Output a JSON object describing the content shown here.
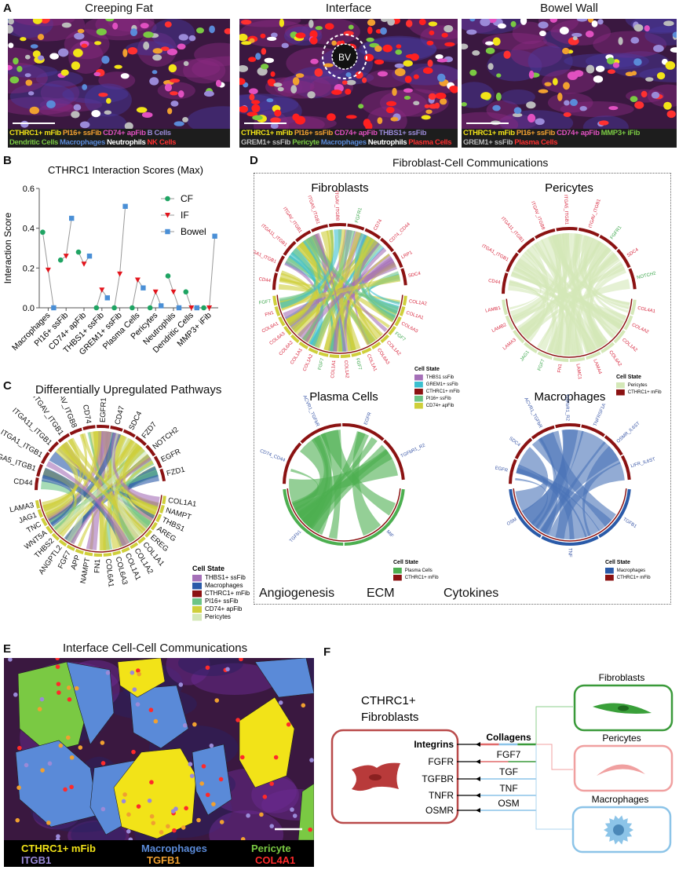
{
  "colors": {
    "angiogenesis": "#3aa64a",
    "ecm": "#d7263d",
    "cytokines": "#3a57a7",
    "cthrc1": "#8b1212",
    "black": "#111111"
  },
  "panelA": {
    "label": "A",
    "panels": [
      {
        "title": "Creeping Fat",
        "legend": [
          [
            {
              "t": "CTHRC1+ mFib",
              "c": "#f2e318"
            },
            {
              "t": "PI16+ ssFib",
              "c": "#f0a030"
            },
            {
              "t": "CD74+ apFib",
              "c": "#e050c0"
            },
            {
              "t": "B Cells",
              "c": "#9a8ad8"
            }
          ],
          [
            {
              "t": "Dendritic Cells",
              "c": "#7ac943"
            },
            {
              "t": "Macrophages",
              "c": "#5a8ad8"
            },
            {
              "t": "Neutrophils",
              "c": "#ffffff"
            },
            {
              "t": "NK Cells",
              "c": "#ff3030"
            }
          ]
        ]
      },
      {
        "title": "Interface",
        "bv": "BV",
        "legend": [
          [
            {
              "t": "CTHRC1+ mFib",
              "c": "#f2e318"
            },
            {
              "t": "PI16+ ssFib",
              "c": "#f0a030"
            },
            {
              "t": "CD74+ apFib",
              "c": "#e050c0"
            },
            {
              "t": "THBS1+ ssFib",
              "c": "#9a8ad8"
            }
          ],
          [
            {
              "t": "GREM1+ ssFib",
              "c": "#bbbbbb"
            },
            {
              "t": "Pericyte",
              "c": "#7ac943"
            },
            {
              "t": "Macrophages",
              "c": "#5a8ad8"
            },
            {
              "t": "Neutrophils",
              "c": "#ffffff"
            },
            {
              "t": "Plasma Cells",
              "c": "#ff3030"
            }
          ]
        ]
      },
      {
        "title": "Bowel Wall",
        "legend": [
          [
            {
              "t": "CTHRC1+ mFib",
              "c": "#f2e318"
            },
            {
              "t": "PI16+ ssFib",
              "c": "#f0a030"
            },
            {
              "t": "CD74+ apFib",
              "c": "#e050c0"
            },
            {
              "t": "MMP3+ iFib",
              "c": "#7ac943"
            }
          ],
          [
            {
              "t": "GREM1+ ssFib",
              "c": "#bbbbbb"
            },
            {
              "t": "Plasma Cells",
              "c": "#ff3030"
            }
          ]
        ]
      }
    ]
  },
  "panelB": {
    "label": "B"
  },
  "chart_data": {
    "type": "line",
    "title": "CTHRC1 Interaction Scores (Max)",
    "xlabel": "",
    "ylabel": "Interaction Score",
    "ylim": [
      0,
      0.6
    ],
    "yticks": [
      "0.0",
      "0.2",
      "0.4",
      "0.6"
    ],
    "categories": [
      "Macrophages",
      "PI16+ ssFib",
      "CD74+ apFib",
      "THBS1+ ssFib",
      "GREM1+ ssFib",
      "Plasma Cells",
      "Pericytes",
      "Neutrophils",
      "Dendritic Cells",
      "MMP3+ iFib"
    ],
    "series": [
      {
        "name": "CF",
        "marker": "circle",
        "color": "#1fa463",
        "values": [
          0.38,
          0.24,
          0.28,
          0,
          0,
          0,
          0,
          0.16,
          0.08,
          0
        ]
      },
      {
        "name": "IF",
        "marker": "triangle-down",
        "color": "#e3141c",
        "values": [
          0.19,
          0.26,
          0.22,
          0.09,
          0.17,
          0.14,
          0.08,
          0.08,
          0,
          0
        ]
      },
      {
        "name": "Bowel",
        "marker": "square",
        "color": "#4a8fd6",
        "values": [
          0,
          0.45,
          0.26,
          0.05,
          0.51,
          0.1,
          0.01,
          0,
          0,
          0.36
        ]
      }
    ],
    "legend": "top-right",
    "grid": false
  },
  "panelC": {
    "label": "C",
    "title": "Differentially Upregulated Pathways",
    "receptors": [
      "CD44",
      "ITGA5_ITGB1",
      "ITGA1_ITGB1",
      "ITGA11_ITGB1",
      "ITGAV_ITGB1",
      "ITGAV_ITGB8",
      "CD74",
      "EGFR1",
      "CD47",
      "SDC4",
      "FZD7",
      "NOTCH2",
      "EGFR",
      "FZD1"
    ],
    "ligands": [
      "COL1A1",
      "NAMPT",
      "THBS1",
      "AREG",
      "EREG",
      "COL1A1",
      "COL1A2",
      "COL1A1",
      "COL6A3",
      "COL6A1",
      "FN1",
      "NAMPT",
      "APP",
      "FGF7",
      "ANGPTL2",
      "THBS2",
      "WNT5A",
      "TNC",
      "JAG1",
      "LAMA3"
    ],
    "legend_title": "Cell State",
    "legend": [
      {
        "t": "THBS1+ ssFib",
        "c": "#a570b8"
      },
      {
        "t": "Macrophages",
        "c": "#2a5aa8"
      },
      {
        "t": "CTHRC1+ mFib",
        "c": "#8b1212"
      },
      {
        "t": "PI16+ ssFib",
        "c": "#6cc486"
      },
      {
        "t": "CD74+ apFib",
        "c": "#cfcf3a"
      },
      {
        "t": "Pericytes",
        "c": "#d4e8b8"
      }
    ]
  },
  "panelD": {
    "label": "D",
    "title": "Fibroblast-Cell Communications",
    "categories": [
      {
        "t": "Angiogenesis",
        "c": "#3aa64a"
      },
      {
        "t": "ECM",
        "c": "#d7263d"
      },
      {
        "t": "Cytokines",
        "c": "#3a57a7"
      }
    ],
    "chords": [
      {
        "title": "Fibroblasts",
        "receptors": [
          {
            "t": "CD44",
            "k": "ecm"
          },
          {
            "t": "ITGA1_ITGB1",
            "k": "ecm"
          },
          {
            "t": "ITGA11_ITGB1",
            "k": "ecm"
          },
          {
            "t": "ITGAV_ITGB1",
            "k": "ecm"
          },
          {
            "t": "ITGA5_ITGB1",
            "k": "ecm"
          },
          {
            "t": "ITGAV_ITGB8",
            "k": "ecm"
          },
          {
            "t": "FGFR1",
            "k": "angiogenesis"
          },
          {
            "t": "CD74",
            "k": "ecm"
          },
          {
            "t": "CD74_CD44",
            "k": "ecm"
          },
          {
            "t": "LRP1",
            "k": "ecm"
          },
          {
            "t": "SDC4",
            "k": "ecm"
          }
        ],
        "ligands": [
          {
            "t": "COL1A2",
            "k": "ecm"
          },
          {
            "t": "COL1A1",
            "k": "ecm"
          },
          {
            "t": "COL6A3",
            "k": "ecm"
          },
          {
            "t": "FGF7",
            "k": "angiogenesis"
          },
          {
            "t": "COL1A2",
            "k": "ecm"
          },
          {
            "t": "COL6A3",
            "k": "ecm"
          },
          {
            "t": "COL1A1",
            "k": "ecm"
          },
          {
            "t": "FGF7",
            "k": "angiogenesis"
          },
          {
            "t": "COL1A2",
            "k": "ecm"
          },
          {
            "t": "COL1A1",
            "k": "ecm"
          },
          {
            "t": "FGF7",
            "k": "angiogenesis"
          },
          {
            "t": "COL1A2",
            "k": "ecm"
          },
          {
            "t": "COL1A1",
            "k": "ecm"
          },
          {
            "t": "COL6A2",
            "k": "ecm"
          },
          {
            "t": "COL6A3",
            "k": "ecm"
          },
          {
            "t": "COL6A1",
            "k": "ecm"
          },
          {
            "t": "FN1",
            "k": "ecm"
          },
          {
            "t": "FGF7",
            "k": "angiogenesis"
          }
        ],
        "legend": [
          {
            "t": "THBS1 ssFib",
            "c": "#a570b8"
          },
          {
            "t": "GREM1+ ssFib",
            "c": "#3cbfcf"
          },
          {
            "t": "CTHRC1+ mFib",
            "c": "#8b1212"
          },
          {
            "t": "PI16+ ssFib",
            "c": "#6cc486"
          },
          {
            "t": "CD74+ apFib",
            "c": "#cfcf3a"
          }
        ]
      },
      {
        "title": "Pericytes",
        "receptors": [
          {
            "t": "CD44",
            "k": "ecm"
          },
          {
            "t": "ITGA1_ITGB1",
            "k": "ecm"
          },
          {
            "t": "ITGA11_ITGB1",
            "k": "ecm"
          },
          {
            "t": "ITGAV_ITGB8",
            "k": "ecm"
          },
          {
            "t": "ITGA5_ITGB1",
            "k": "ecm"
          },
          {
            "t": "ITGAV_ITGB1",
            "k": "ecm"
          },
          {
            "t": "FGFR1",
            "k": "angiogenesis"
          },
          {
            "t": "SDC4",
            "k": "ecm"
          },
          {
            "t": "NOTCH2",
            "k": "angiogenesis"
          }
        ],
        "ligands": [
          {
            "t": "COL4A1",
            "k": "ecm"
          },
          {
            "t": "COL4A2",
            "k": "ecm"
          },
          {
            "t": "COL1A2",
            "k": "ecm"
          },
          {
            "t": "COL6A2",
            "k": "ecm"
          },
          {
            "t": "LAMA4",
            "k": "ecm"
          },
          {
            "t": "LAMC1",
            "k": "ecm"
          },
          {
            "t": "FN1",
            "k": "ecm"
          },
          {
            "t": "FGF7",
            "k": "angiogenesis"
          },
          {
            "t": "JAG1",
            "k": "angiogenesis"
          },
          {
            "t": "LAMA3",
            "k": "ecm"
          },
          {
            "t": "LAMB2",
            "k": "ecm"
          },
          {
            "t": "LAMB1",
            "k": "ecm"
          }
        ],
        "legend": [
          {
            "t": "Pericytes",
            "c": "#d4e8b8"
          },
          {
            "t": "CTHRC1+ mFib",
            "c": "#8b1212"
          }
        ]
      },
      {
        "title": "Plasma Cells",
        "receptors": [
          {
            "t": "CD74_CD44",
            "k": "cytokines"
          },
          {
            "t": "ACVR1_TGFbR",
            "k": "cytokines"
          },
          {
            "t": "EGFR",
            "k": "cytokines"
          },
          {
            "t": "TGFbR1_R2",
            "k": "cytokines"
          }
        ],
        "ligands": [
          {
            "t": "MIF",
            "k": "cytokines"
          },
          {
            "t": "TGFb1",
            "k": "cytokines"
          }
        ],
        "legend": [
          {
            "t": "Plasma Cells",
            "c": "#4caf50"
          },
          {
            "t": "CTHRC1+ mFib",
            "c": "#8b1212"
          }
        ]
      },
      {
        "title": "Macrophages",
        "receptors": [
          {
            "t": "EGFR",
            "k": "cytokines"
          },
          {
            "t": "SDC4",
            "k": "cytokines"
          },
          {
            "t": "ACVR1_TGFbR",
            "k": "cytokines"
          },
          {
            "t": "TGFbR1_R2",
            "k": "cytokines"
          },
          {
            "t": "TNFRSF1A",
            "k": "cytokines"
          },
          {
            "t": "OSMR_IL6ST",
            "k": "cytokines"
          },
          {
            "t": "LIFR_IL6ST",
            "k": "cytokines"
          }
        ],
        "ligands": [
          {
            "t": "TGFB1",
            "k": "cytokines"
          },
          {
            "t": "TNF",
            "k": "cytokines"
          },
          {
            "t": "OSM",
            "k": "cytokines"
          }
        ],
        "legend": [
          {
            "t": "Macrophages",
            "c": "#2a5aa8"
          },
          {
            "t": "CTHRC1+ mFib",
            "c": "#8b1212"
          }
        ]
      }
    ],
    "legend_title": "Cell State"
  },
  "panelE": {
    "label": "E",
    "title": "Interface Cell-Cell Communications",
    "legend": [
      {
        "t": "CTHRC1+ mFib",
        "c": "#f2e318"
      },
      {
        "t": "Macrophages",
        "c": "#5a8ad8"
      },
      {
        "t": "Pericyte",
        "c": "#7ac943"
      },
      {
        "t": "ITGB1",
        "c": "#9a8ad8"
      },
      {
        "t": "TGFB1",
        "c": "#f0a030"
      },
      {
        "t": "COL4A1",
        "c": "#ff2a2a"
      }
    ]
  },
  "panelF": {
    "label": "F",
    "source_title_1": "CTHRC1+",
    "source_title_2": "Fibroblasts",
    "receptors": [
      "Integrins",
      "FGFR",
      "TGFBR",
      "TNFR",
      "OSMR"
    ],
    "ligands": [
      "Collagens",
      "FGF7",
      "TGF",
      "TNF",
      "OSM"
    ],
    "targets": [
      {
        "t": "Fibroblasts",
        "c": "#3a9a3a"
      },
      {
        "t": "Pericytes",
        "c": "#f0a0a0"
      },
      {
        "t": "Macrophages",
        "c": "#8cc4e8"
      }
    ]
  }
}
